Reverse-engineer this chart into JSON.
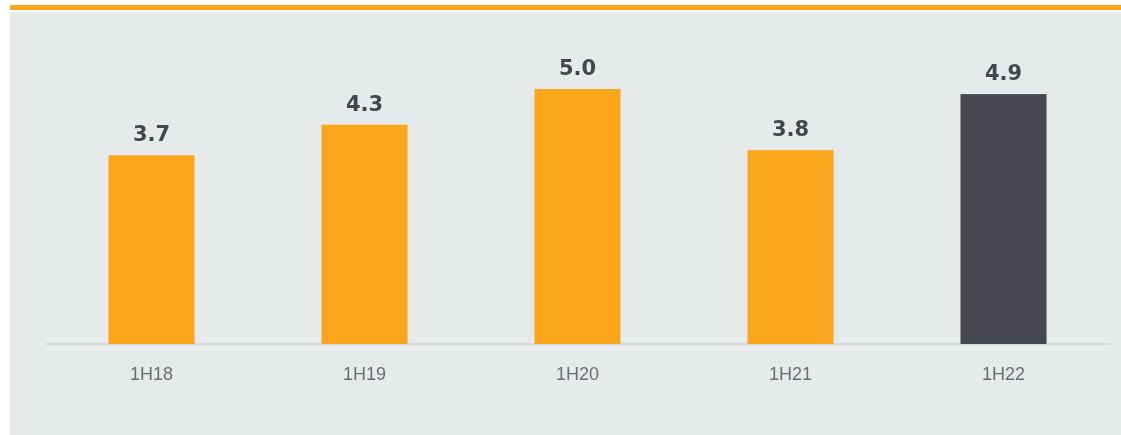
{
  "chart_data": {
    "type": "bar",
    "categories": [
      "1H18",
      "1H19",
      "1H20",
      "1H21",
      "1H22"
    ],
    "values": [
      3.7,
      4.3,
      5.0,
      3.8,
      4.9
    ],
    "colors": [
      "#f9a61c",
      "#f9a61c",
      "#f9a61c",
      "#f9a61c",
      "#45464f"
    ],
    "data_labels": true,
    "value_labels": [
      "3.7",
      "4.3",
      "5.0",
      "3.8",
      "4.9"
    ]
  }
}
